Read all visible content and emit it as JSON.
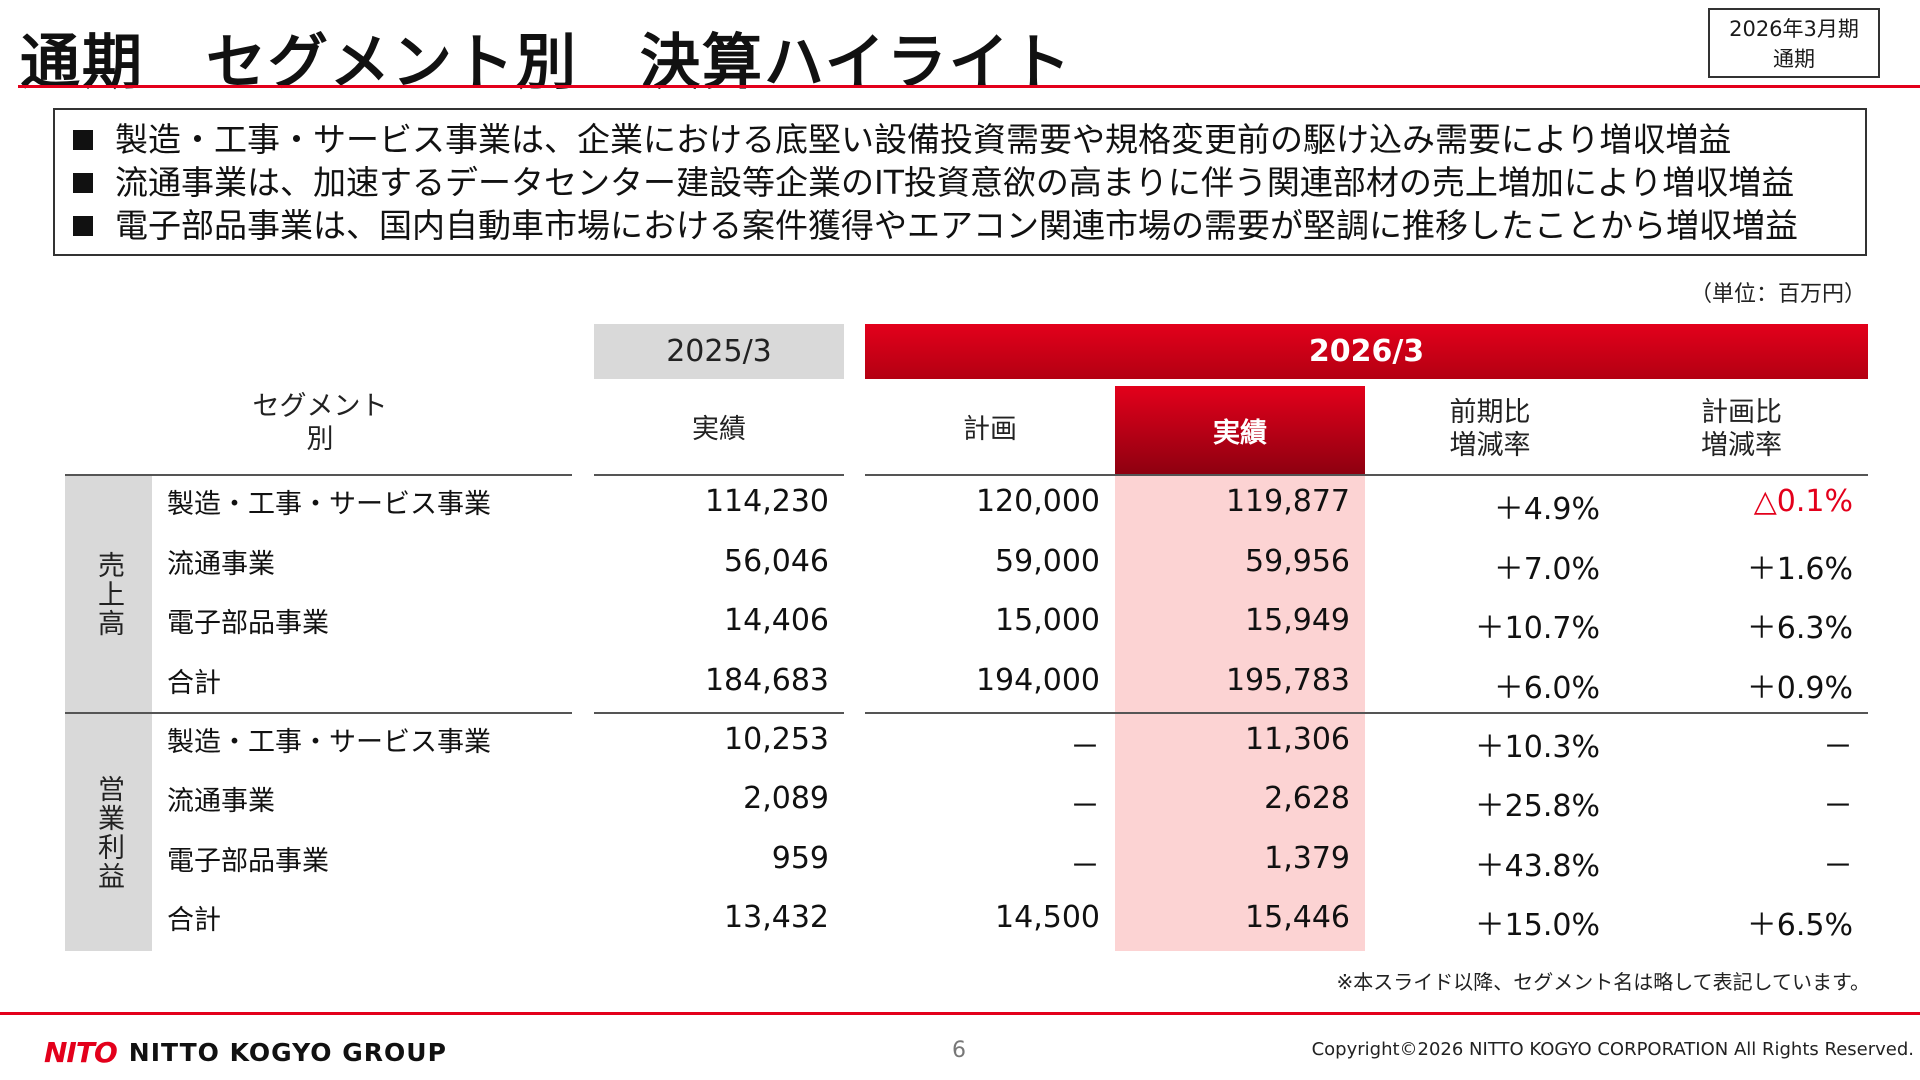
{
  "header": {
    "title": "通期　セグメント別　決算ハイライト",
    "period_line1": "2026年3月期",
    "period_line2": "通期"
  },
  "summary": [
    "製造・工事・サービス事業は、企業における底堅い設備投資需要や規格変更前の駆け込み需要により増収増益",
    "流通事業は、加速するデータセンター建設等企業のIT投資意欲の高まりに伴う関連部材の売上増加により増収増益",
    "電子部品事業は、国内自動車市場における案件獲得やエアコン関連市場の需要が堅調に推移したことから増収増益"
  ],
  "unit": "（単位：百万円）",
  "table": {
    "segment_header": "セグメント別",
    "prev_year": "2025/3",
    "curr_year": "2026/3",
    "col_prev_actual": "実績",
    "col_plan": "計画",
    "col_actual": "実績",
    "col_yoy_1": "前期比",
    "col_yoy_2": "増減率",
    "col_vsplan_1": "計画比",
    "col_vsplan_2": "増減率",
    "group_sales": "売上高",
    "group_op": "営業利益",
    "sales_rows": [
      {
        "label": "製造・工事・サービス事業",
        "prev": "114,230",
        "plan": "120,000",
        "actual": "119,877",
        "yoy": "＋4.9%",
        "vsplan": "△0.1%"
      },
      {
        "label": "流通事業",
        "prev": "56,046",
        "plan": "59,000",
        "actual": "59,956",
        "yoy": "＋7.0%",
        "vsplan": "＋1.6%"
      },
      {
        "label": "電子部品事業",
        "prev": "14,406",
        "plan": "15,000",
        "actual": "15,949",
        "yoy": "＋10.7%",
        "vsplan": "＋6.3%"
      },
      {
        "label": "合計",
        "prev": "184,683",
        "plan": "194,000",
        "actual": "195,783",
        "yoy": "＋6.0%",
        "vsplan": "＋0.9%"
      }
    ],
    "op_rows": [
      {
        "label": "製造・工事・サービス事業",
        "prev": "10,253",
        "plan": "－",
        "actual": "11,306",
        "yoy": "＋10.3%",
        "vsplan": "－"
      },
      {
        "label": "流通事業",
        "prev": "2,089",
        "plan": "－",
        "actual": "2,628",
        "yoy": "＋25.8%",
        "vsplan": "－"
      },
      {
        "label": "電子部品事業",
        "prev": "959",
        "plan": "－",
        "actual": "1,379",
        "yoy": "＋43.8%",
        "vsplan": "－"
      },
      {
        "label": "合計",
        "prev": "13,432",
        "plan": "14,500",
        "actual": "15,446",
        "yoy": "＋15.0%",
        "vsplan": "＋6.5%"
      }
    ]
  },
  "note": "※本スライド以降、セグメント名は略して表記しています。",
  "footer": {
    "logo_mark": "NITO",
    "logo_text": "NITTO KOGYO GROUP",
    "page": "6",
    "copyright": "Copyright©2026 NITTO KOGYO CORPORATION All Rights Reserved."
  },
  "colors": {
    "accent": "#e3001b",
    "actual_column_bg": "#fcd3d3",
    "header_gray": "#d9d9d9"
  }
}
